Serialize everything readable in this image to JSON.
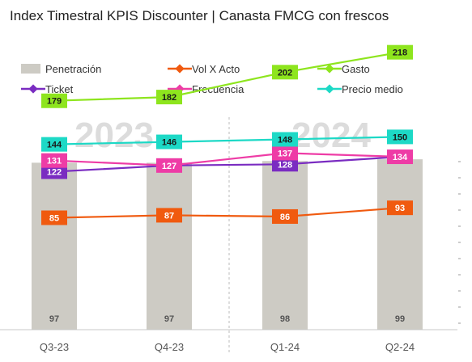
{
  "chart_data": {
    "type": "bar",
    "title": "Index Timestral KPIS Discounter   | Canasta FMCG con frescos",
    "categories": [
      "Q3-23",
      "Q4-23",
      "Q1-24",
      "Q2-24"
    ],
    "year_labels": [
      "2023",
      "2024"
    ],
    "bar_series": {
      "name": "Penetración",
      "color": "#cdcbc4",
      "values": [
        97,
        97,
        98,
        99
      ]
    },
    "line_series": [
      {
        "name": "Vol X Acto",
        "color": "#f05a0f",
        "values": [
          85,
          87,
          86,
          93
        ],
        "label_text": "#ffffff"
      },
      {
        "name": "Gasto",
        "color": "#8ee51e",
        "values": [
          179,
          182,
          202,
          218
        ],
        "label_text": "#1a1a1a"
      },
      {
        "name": "Ticket",
        "color": "#7a2cc1",
        "values": [
          122,
          127,
          128,
          134
        ],
        "label_text": "#ffffff"
      },
      {
        "name": "Frecuencia",
        "color": "#ee3ca6",
        "values": [
          131,
          127,
          137,
          134
        ],
        "label_text": "#ffffff"
      },
      {
        "name": "Precio medio",
        "color": "#1dd9c6",
        "values": [
          144,
          146,
          148,
          150
        ],
        "label_text": "#1a1a1a"
      }
    ],
    "visible_labels": {
      "Vol X Acto": [
        true,
        true,
        true,
        true
      ],
      "Gasto": [
        true,
        true,
        true,
        true
      ],
      "Ticket": [
        true,
        false,
        true,
        false
      ],
      "Frecuencia": [
        true,
        true,
        true,
        true
      ],
      "Precio medio": [
        true,
        true,
        true,
        true
      ]
    },
    "legend_order": [
      "Penetración",
      "Vol X Acto",
      "Gasto",
      "Ticket",
      "Frecuencia",
      "Precio medio"
    ],
    "legend_position": "top",
    "grid": false
  }
}
